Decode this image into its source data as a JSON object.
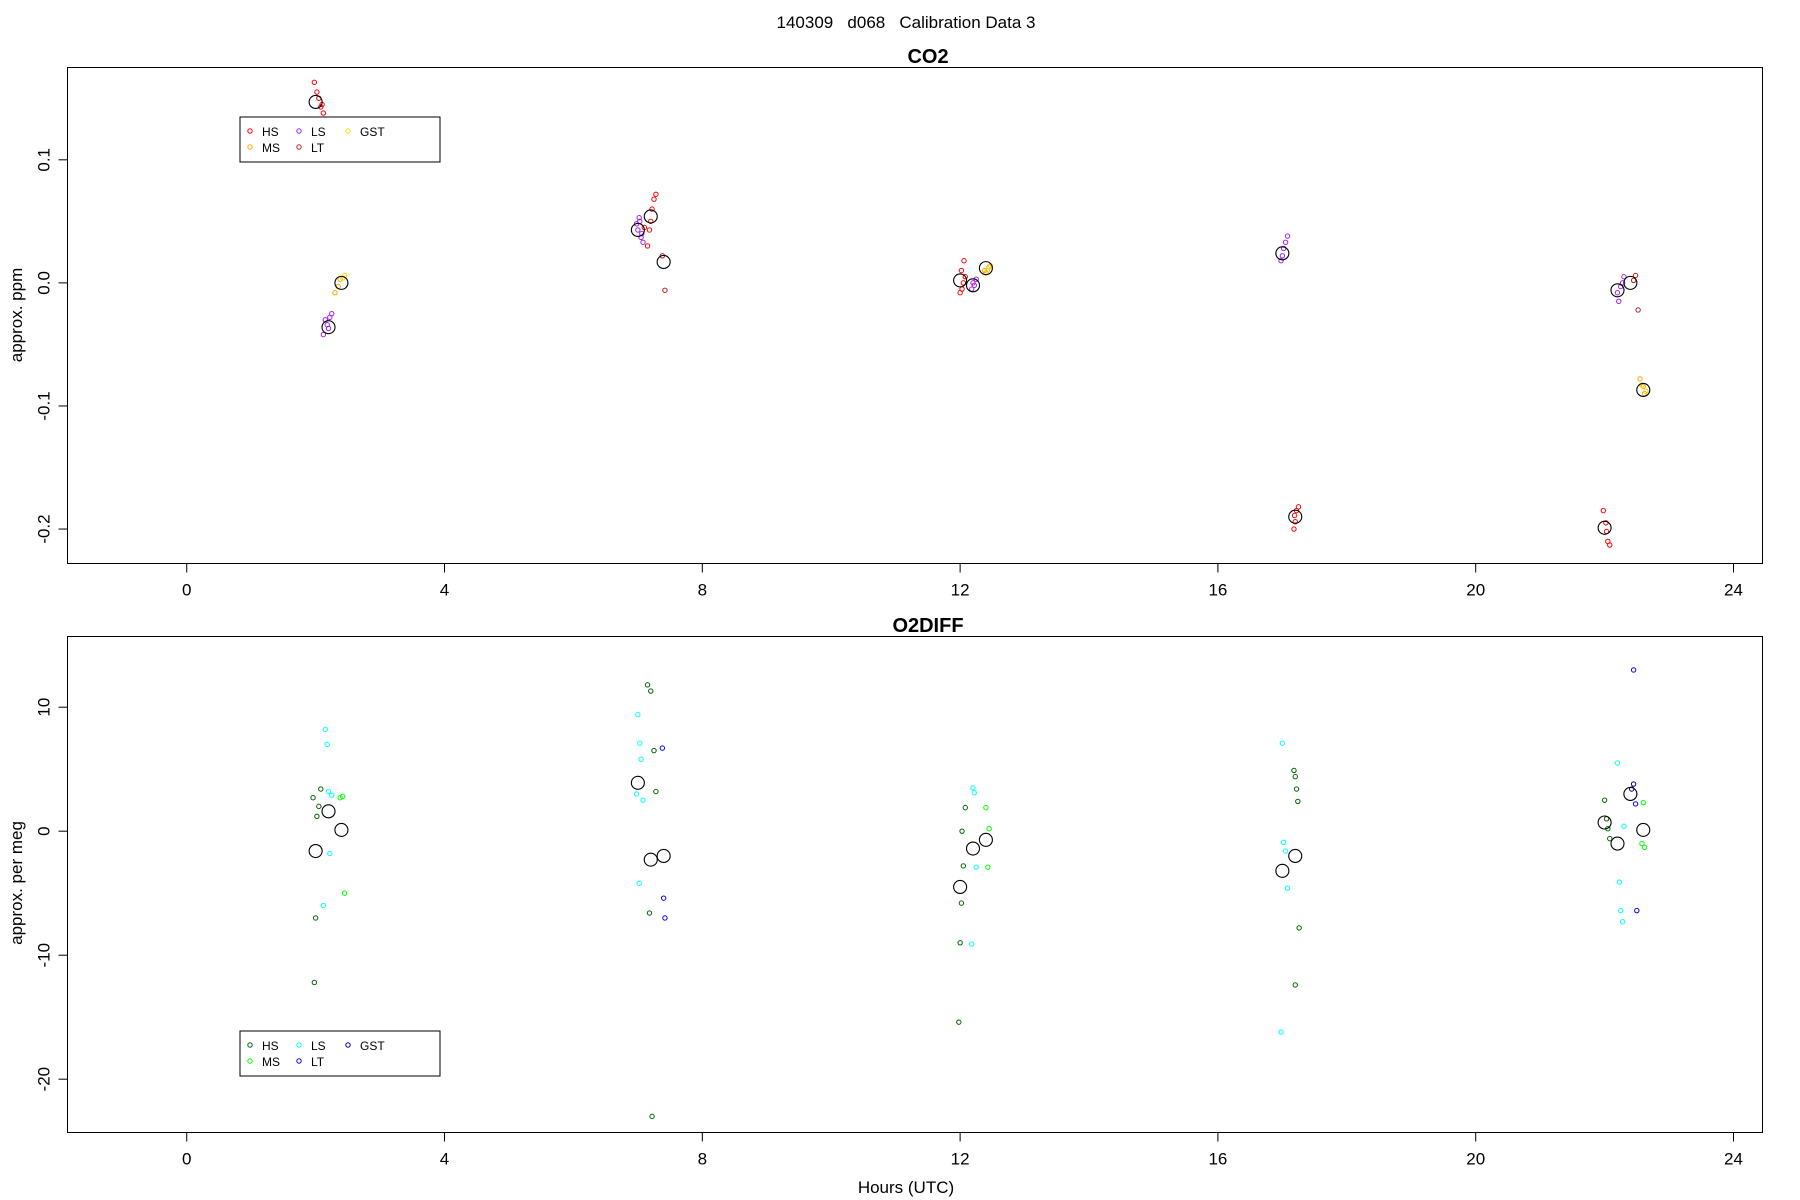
{
  "figure": {
    "title": "140309   d068   Calibration Data 3"
  },
  "chart_data": [
    {
      "type": "scatter",
      "title": "CO2",
      "xlabel": "",
      "ylabel": "approx. ppm",
      "xlim": [
        -1.85,
        24.45
      ],
      "ylim": [
        -0.228,
        0.175
      ],
      "xticks": [
        0,
        4,
        8,
        12,
        16,
        20,
        24
      ],
      "xtick_labels": [
        "0",
        "4",
        "8",
        "12",
        "16",
        "20",
        "24"
      ],
      "yticks": [
        -0.2,
        -0.1,
        0.0,
        0.1
      ],
      "ytick_labels": [
        "-0.2",
        "-0.1",
        "0.0",
        "0.1"
      ],
      "grid": false,
      "legend": {
        "placement": "top-left",
        "entries": [
          {
            "label": "HS",
            "color": "#ff0000"
          },
          {
            "label": "MS",
            "color": "#ffa500"
          },
          {
            "label": "LS",
            "color": "#a020f0"
          },
          {
            "label": "LT",
            "color": "#b22222"
          },
          {
            "label": "GST",
            "color": "#ffd700"
          }
        ]
      },
      "means_color": "#000000",
      "series": [
        {
          "name": "HS",
          "color": "#ff0000",
          "x": [
            1.98,
            2.02,
            2.05,
            2.1,
            2.12,
            2.08,
            12.0,
            12.03,
            12.05,
            12.08,
            12.02,
            12.06,
            7.15,
            7.18,
            7.22,
            7.25,
            7.28,
            7.1,
            7.2,
            17.18,
            17.2,
            17.22,
            17.25,
            17.19,
            21.98,
            22.02,
            22.05,
            22.08,
            22.03
          ],
          "y": [
            0.163,
            0.155,
            0.15,
            0.145,
            0.138,
            0.143,
            -0.008,
            -0.005,
            0.0,
            0.005,
            0.01,
            0.018,
            0.03,
            0.043,
            0.06,
            0.068,
            0.072,
            0.045,
            0.05,
            -0.2,
            -0.194,
            -0.185,
            -0.182,
            -0.189,
            -0.185,
            -0.195,
            -0.21,
            -0.213,
            -0.202
          ]
        },
        {
          "name": "MS",
          "color": "#ffa500",
          "x": [
            2.3,
            2.35,
            2.38,
            12.4,
            12.45,
            12.38,
            22.6,
            22.62,
            22.55
          ],
          "y": [
            -0.008,
            -0.003,
            0.003,
            0.008,
            0.013,
            0.01,
            -0.084,
            -0.09,
            -0.078
          ]
        },
        {
          "name": "LS",
          "color": "#a020f0",
          "x": [
            2.15,
            2.18,
            2.2,
            2.22,
            2.25,
            2.12,
            7.0,
            7.03,
            7.05,
            7.08,
            7.02,
            6.98,
            7.06,
            12.18,
            12.2,
            12.22,
            12.25,
            16.98,
            17.0,
            17.02,
            17.05,
            17.08,
            22.25,
            22.28,
            22.3,
            22.22,
            22.2
          ],
          "y": [
            -0.03,
            -0.034,
            -0.037,
            -0.028,
            -0.025,
            -0.042,
            0.043,
            0.05,
            0.037,
            0.033,
            0.053,
            0.048,
            0.04,
            -0.005,
            0.0,
            -0.002,
            0.003,
            0.018,
            0.022,
            0.028,
            0.033,
            0.038,
            -0.003,
            0.0,
            0.005,
            -0.015,
            -0.008
          ]
        },
        {
          "name": "LT",
          "color": "#b22222",
          "x": [
            7.38,
            7.42,
            22.48,
            22.52,
            22.45
          ],
          "y": [
            0.022,
            -0.006,
            0.006,
            -0.022,
            0.002
          ]
        },
        {
          "name": "GST",
          "color": "#ffd700",
          "x": [
            2.42,
            2.45,
            12.42,
            12.47,
            22.58,
            22.64
          ],
          "y": [
            0.004,
            0.006,
            0.01,
            0.014,
            -0.083,
            -0.088
          ]
        }
      ],
      "means": {
        "x": [
          2.0,
          2.2,
          2.4,
          7.0,
          7.2,
          7.4,
          12.0,
          12.2,
          12.4,
          17.0,
          17.2,
          22.0,
          22.2,
          22.4,
          22.6
        ],
        "y": [
          0.147,
          -0.036,
          0.0,
          0.043,
          0.054,
          0.017,
          0.002,
          -0.002,
          0.012,
          0.024,
          -0.19,
          -0.199,
          -0.006,
          0.0,
          -0.087
        ]
      }
    },
    {
      "type": "scatter",
      "title": "O2DIFF",
      "xlabel": "Hours (UTC)",
      "ylabel": "approx. per meg",
      "xlim": [
        -1.85,
        24.45
      ],
      "ylim": [
        -24.3,
        15.7
      ],
      "xticks": [
        0,
        4,
        8,
        12,
        16,
        20,
        24
      ],
      "xtick_labels": [
        "0",
        "4",
        "8",
        "12",
        "16",
        "20",
        "24"
      ],
      "yticks": [
        -20,
        -10,
        0,
        10
      ],
      "ytick_labels": [
        "-20",
        "-10",
        "0",
        "10"
      ],
      "grid": false,
      "legend": {
        "placement": "bottom-left",
        "entries": [
          {
            "label": "HS",
            "color": "#006400"
          },
          {
            "label": "MS",
            "color": "#00ff00"
          },
          {
            "label": "LS",
            "color": "#00ffff"
          },
          {
            "label": "LT",
            "color": "#0000ff"
          },
          {
            "label": "GST",
            "color": "#00008b"
          }
        ]
      },
      "means_color": "#000000",
      "series": [
        {
          "name": "HS",
          "color": "#006400",
          "x": [
            1.98,
            2.02,
            2.05,
            2.08,
            2.0,
            1.96,
            7.15,
            7.2,
            7.25,
            7.28,
            7.22,
            7.18,
            11.98,
            12.0,
            12.02,
            12.05,
            12.08,
            12.03,
            17.18,
            17.2,
            17.22,
            17.24,
            17.26,
            17.2,
            22.0,
            22.03,
            22.05,
            22.08
          ],
          "y": [
            -12.2,
            1.2,
            2.0,
            3.4,
            -7.0,
            2.7,
            11.8,
            11.3,
            6.5,
            3.2,
            -23.0,
            -6.6,
            -15.4,
            -9.0,
            -5.8,
            -2.8,
            1.9,
            0.0,
            4.9,
            4.4,
            3.4,
            2.4,
            -7.8,
            -12.4,
            2.5,
            1.0,
            0.2,
            -0.6
          ]
        },
        {
          "name": "MS",
          "color": "#00ff00",
          "x": [
            2.38,
            2.42,
            2.45,
            12.4,
            12.43,
            12.45,
            22.58,
            22.62,
            22.6
          ],
          "y": [
            2.7,
            2.8,
            -5.0,
            1.9,
            -2.9,
            0.2,
            -1.0,
            -1.3,
            2.3
          ]
        },
        {
          "name": "LS",
          "color": "#00ffff",
          "x": [
            2.15,
            2.18,
            2.2,
            2.22,
            2.25,
            2.12,
            7.0,
            7.03,
            7.05,
            7.08,
            7.02,
            6.98,
            12.2,
            12.22,
            12.25,
            12.18,
            17.0,
            17.02,
            17.05,
            17.08,
            16.98,
            22.2,
            22.23,
            22.25,
            22.28,
            22.3
          ],
          "y": [
            8.2,
            7.0,
            3.2,
            -1.8,
            2.9,
            -6.0,
            9.4,
            7.1,
            5.8,
            2.5,
            -4.2,
            3.0,
            3.5,
            3.1,
            -2.9,
            -9.1,
            7.1,
            -0.9,
            -1.6,
            -4.6,
            -16.2,
            5.5,
            -4.1,
            -6.4,
            -7.3,
            0.4
          ]
        },
        {
          "name": "LT",
          "color": "#0000ff",
          "x": [
            7.38,
            7.4,
            7.42,
            22.45,
            22.48,
            22.5
          ],
          "y": [
            6.7,
            -5.4,
            -7.0,
            13.0,
            2.2,
            -6.4
          ]
        },
        {
          "name": "GST",
          "color": "#00008b",
          "x": [
            22.42,
            22.45
          ],
          "y": [
            3.4,
            3.8
          ]
        }
      ],
      "means": {
        "x": [
          2.0,
          2.2,
          2.4,
          7.0,
          7.2,
          7.4,
          12.0,
          12.2,
          12.4,
          17.0,
          17.2,
          22.0,
          22.2,
          22.4,
          22.6
        ],
        "y": [
          -1.6,
          1.6,
          0.1,
          3.9,
          -2.3,
          -2.0,
          -4.5,
          -1.4,
          -0.7,
          -3.2,
          -2.0,
          0.7,
          -1.0,
          3.0,
          0.1
        ]
      }
    }
  ]
}
